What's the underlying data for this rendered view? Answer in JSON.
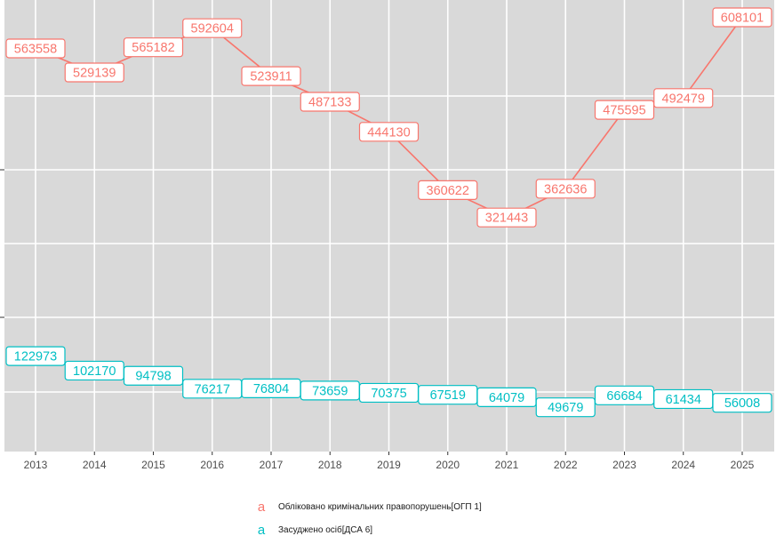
{
  "chart_data": {
    "type": "line",
    "title": "",
    "xlabel": "",
    "ylabel": "",
    "x": [
      "2013",
      "2014",
      "2015",
      "2016",
      "2017",
      "2018",
      "2019",
      "2020",
      "2021",
      "2022",
      "2023",
      "2024",
      "2025"
    ],
    "ylim": [
      20000,
      610000
    ],
    "grid": true,
    "legend_position": "bottom",
    "legend_key_glyph": "a",
    "series": [
      {
        "name": "Обліковано кримінальних правопорушень[ОГП 1]",
        "color": "#F8766D",
        "values": [
          563558,
          529139,
          565182,
          592604,
          523911,
          487133,
          444130,
          360622,
          321443,
          362636,
          475595,
          492479,
          608101
        ]
      },
      {
        "name": "Засуджено осіб[ДСА 6]",
        "color": "#00BFC4",
        "values": [
          122973,
          102170,
          94798,
          76217,
          76804,
          73659,
          70375,
          67519,
          64079,
          49679,
          66684,
          61434,
          56008
        ]
      }
    ]
  }
}
